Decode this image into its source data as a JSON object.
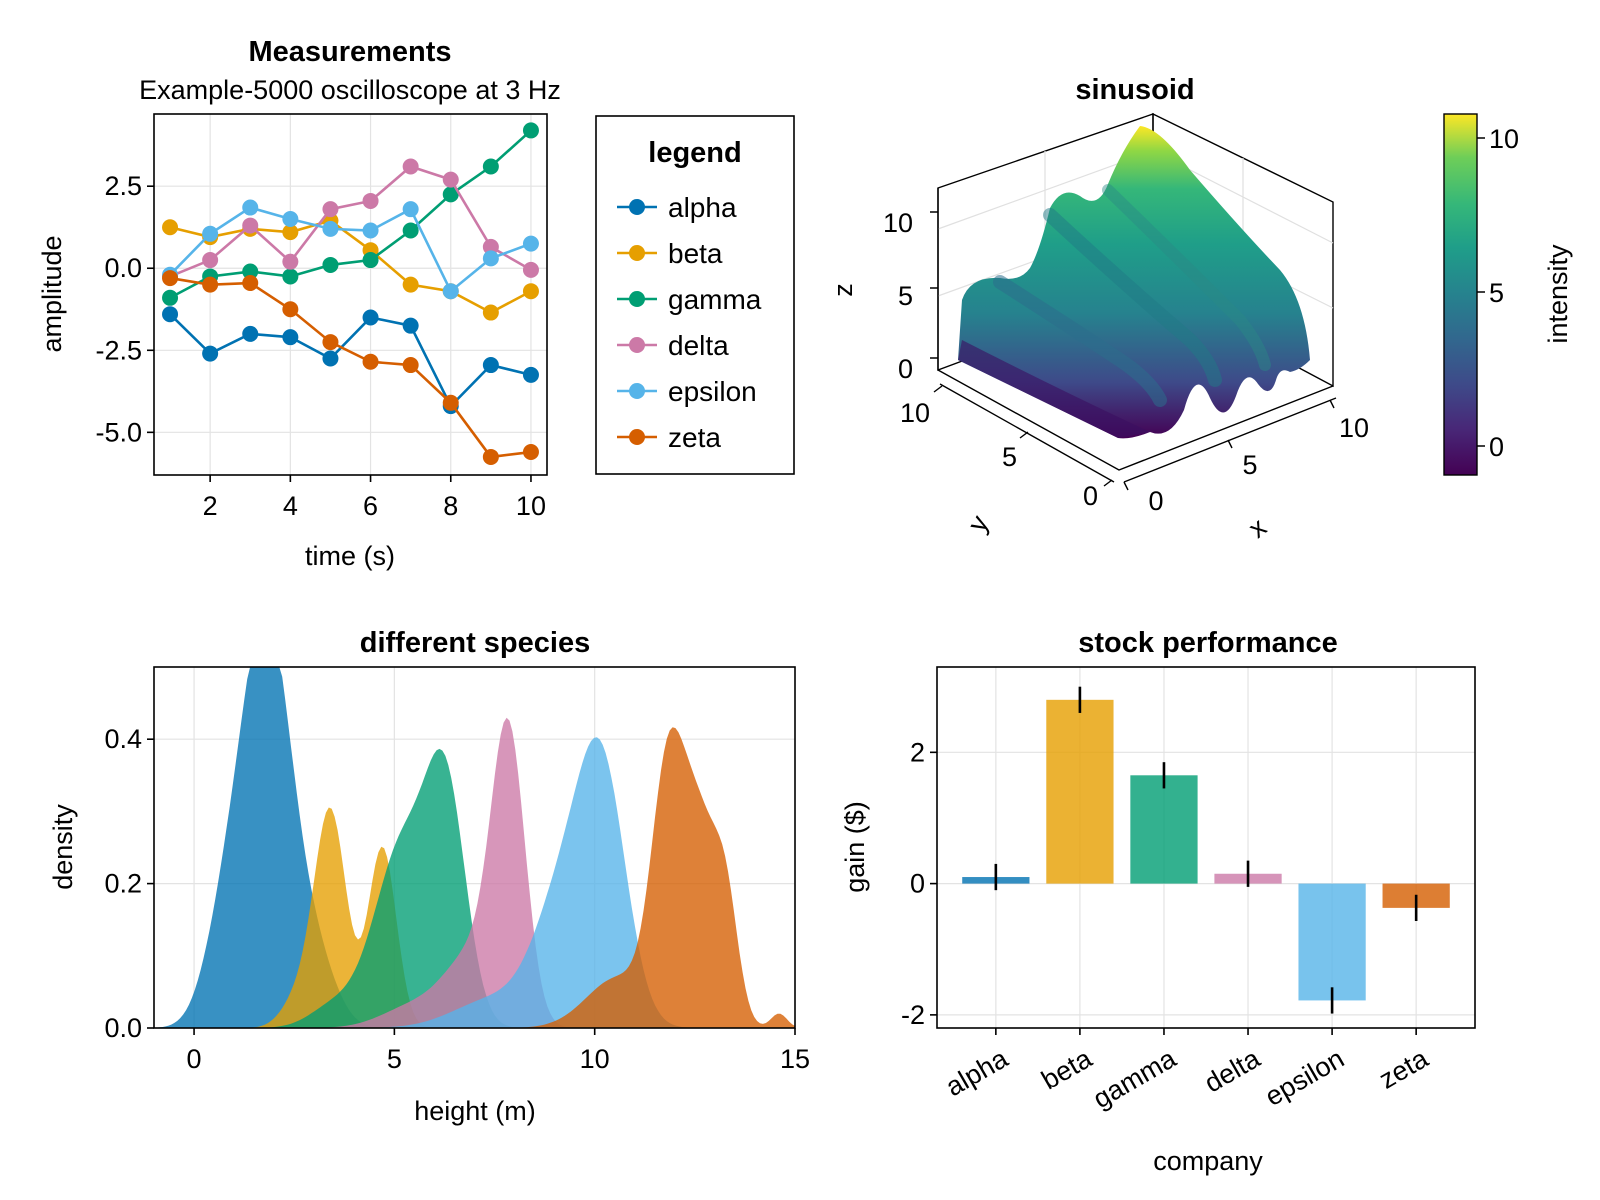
{
  "chart_data": [
    {
      "type": "line",
      "title": "Measurements",
      "subtitle": "Example-5000 oscilloscope at 3 Hz",
      "xlabel": "time (s)",
      "ylabel": "amplitude",
      "xlim": [
        0.6,
        10.4
      ],
      "ylim": [
        -6.3,
        4.7
      ],
      "xticks": [
        2,
        4,
        6,
        8,
        10
      ],
      "xtick_labels": [
        "2",
        "4",
        "6",
        "8",
        "10"
      ],
      "yticks": [
        2.5,
        0.0,
        -2.5,
        -5.0
      ],
      "ytick_labels": [
        "2.5",
        "0.0",
        "-2.5",
        "-5.0"
      ],
      "grid": true,
      "legend": {
        "title": "legend",
        "placement": "right"
      },
      "x": [
        1,
        2,
        3,
        4,
        5,
        6,
        7,
        8,
        9,
        10
      ],
      "series": [
        {
          "name": "alpha",
          "color": "#0072b2",
          "values": [
            -1.4,
            -2.6,
            -2.0,
            -2.1,
            -2.75,
            -1.5,
            -1.75,
            -4.2,
            -2.95,
            -3.25
          ]
        },
        {
          "name": "beta",
          "color": "#e69f00",
          "values": [
            1.25,
            0.95,
            1.2,
            1.1,
            1.45,
            0.55,
            -0.5,
            -0.7,
            -1.35,
            -0.7
          ]
        },
        {
          "name": "gamma",
          "color": "#009e73",
          "values": [
            -0.9,
            -0.25,
            -0.1,
            -0.25,
            0.1,
            0.25,
            1.15,
            2.25,
            3.1,
            4.2
          ]
        },
        {
          "name": "delta",
          "color": "#cc79a7",
          "values": [
            -0.25,
            0.25,
            1.3,
            0.2,
            1.8,
            2.05,
            3.1,
            2.7,
            0.65,
            -0.05
          ]
        },
        {
          "name": "epsilon",
          "color": "#56b4e9",
          "values": [
            -0.2,
            1.05,
            1.85,
            1.5,
            1.2,
            1.15,
            1.8,
            -0.7,
            0.3,
            0.75
          ]
        },
        {
          "name": "zeta",
          "color": "#d55e00",
          "values": [
            -0.3,
            -0.5,
            -0.45,
            -1.25,
            -2.25,
            -2.85,
            -2.95,
            -4.1,
            -5.75,
            -5.6
          ]
        }
      ]
    },
    {
      "type": "surface",
      "title": "sinusoid",
      "xlabel": "x",
      "ylabel": "y",
      "zlabel": "z",
      "xlim": [
        0,
        10
      ],
      "ylim": [
        0,
        10
      ],
      "zlim": [
        -1,
        11
      ],
      "xticks": [
        "0",
        "5",
        "10"
      ],
      "yticks": [
        "0",
        "5",
        "10"
      ],
      "zticks": [
        "0",
        "5",
        "10"
      ],
      "colormap": "viridis",
      "colorbar": {
        "label": "intensity",
        "ticks": [
          "0",
          "5",
          "10"
        ],
        "range": [
          -1,
          11
        ]
      }
    },
    {
      "type": "area",
      "title": "different species",
      "xlabel": "height (m)",
      "ylabel": "density",
      "xlim": [
        -1,
        15
      ],
      "ylim": [
        0,
        0.5
      ],
      "xticks": [
        0,
        5,
        10,
        15
      ],
      "xtick_labels": [
        "0",
        "5",
        "10",
        "15"
      ],
      "yticks": [
        0.0,
        0.2,
        0.4
      ],
      "ytick_labels": [
        "0.0",
        "0.2",
        "0.4"
      ],
      "grid": true,
      "series": [
        {
          "color": "#0072b2",
          "components": [
            [
              1.8,
              0.65,
              0.57
            ],
            [
              0.7,
              0.5,
              0.1
            ],
            [
              3.1,
              0.5,
              0.07
            ]
          ]
        },
        {
          "color": "#e69f00",
          "components": [
            [
              3.4,
              0.4,
              0.3
            ],
            [
              4.7,
              0.35,
              0.25
            ],
            [
              2.6,
              0.4,
              0.04
            ]
          ]
        },
        {
          "color": "#009e73",
          "components": [
            [
              6.3,
              0.5,
              0.3
            ],
            [
              5.2,
              0.7,
              0.25
            ],
            [
              3.5,
              0.6,
              0.03
            ]
          ]
        },
        {
          "color": "#cc79a7",
          "components": [
            [
              7.85,
              0.42,
              0.38
            ],
            [
              7.0,
              0.7,
              0.1
            ],
            [
              5.5,
              0.8,
              0.03
            ]
          ]
        },
        {
          "color": "#56b4e9",
          "components": [
            [
              10.2,
              0.6,
              0.33
            ],
            [
              9.2,
              0.7,
              0.17
            ],
            [
              7.5,
              1.0,
              0.04
            ]
          ]
        },
        {
          "color": "#d55e00",
          "components": [
            [
              11.8,
              0.4,
              0.3
            ],
            [
              12.6,
              0.5,
              0.28
            ],
            [
              13.3,
              0.3,
              0.12
            ],
            [
              10.6,
              0.8,
              0.07
            ],
            [
              14.6,
              0.2,
              0.02
            ]
          ]
        }
      ]
    },
    {
      "type": "bar",
      "title": "stock performance",
      "xlabel": "company",
      "ylabel": "gain ($)",
      "categories": [
        "alpha",
        "beta",
        "gamma",
        "delta",
        "epsilon",
        "zeta"
      ],
      "values": [
        0.1,
        2.8,
        1.65,
        0.15,
        -1.78,
        -0.37
      ],
      "errors": [
        0.2,
        0.2,
        0.2,
        0.2,
        0.2,
        0.2
      ],
      "colors": [
        "#0072b2",
        "#e69f00",
        "#009e73",
        "#cc79a7",
        "#56b4e9",
        "#d55e00"
      ],
      "ylim": [
        -2.2,
        3.3
      ],
      "yticks": [
        2,
        0,
        -2
      ],
      "ytick_labels": [
        "2",
        "0",
        "-2"
      ],
      "grid": true
    }
  ]
}
